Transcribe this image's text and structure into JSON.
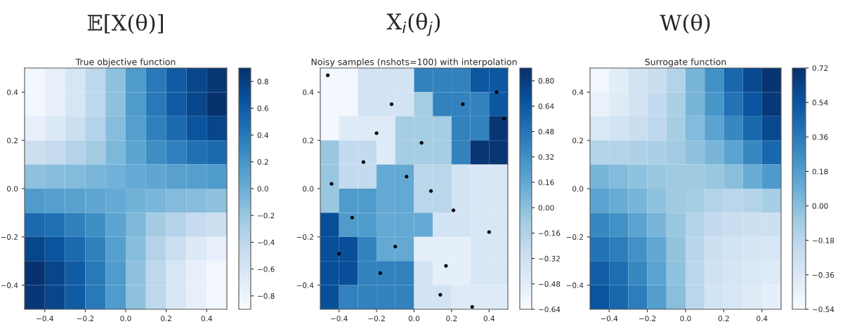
{
  "chart_data": [
    {
      "type": "heatmap",
      "title": "𝔼[X(θ)]",
      "subtitle": "True objective function",
      "xlim": [
        -0.5,
        0.5
      ],
      "ylim": [
        -0.5,
        0.5
      ],
      "xticks": [
        {
          "value": -0.4,
          "label": "−0.4"
        },
        {
          "value": -0.2,
          "label": "−0.2"
        },
        {
          "value": 0.0,
          "label": "0.0"
        },
        {
          "value": 0.2,
          "label": "0.2"
        },
        {
          "value": 0.4,
          "label": "0.4"
        }
      ],
      "yticks": [
        {
          "value": -0.4,
          "label": "−0.4"
        },
        {
          "value": -0.2,
          "label": "−0.2"
        },
        {
          "value": 0.0,
          "label": "0.0"
        },
        {
          "value": 0.2,
          "label": "0.2"
        },
        {
          "value": 0.4,
          "label": "0.4"
        }
      ],
      "clim": [
        -0.9,
        0.9
      ],
      "cticks": [
        {
          "value": -0.8,
          "label": "−0.8"
        },
        {
          "value": -0.6,
          "label": "−0.6"
        },
        {
          "value": -0.4,
          "label": "−0.4"
        },
        {
          "value": -0.2,
          "label": "−0.2"
        },
        {
          "value": 0.0,
          "label": "0.0"
        },
        0.2,
        0.4,
        0.6,
        0.8
      ],
      "cells": [
        [
          -0.85,
          -0.75,
          -0.6,
          -0.4,
          -0.15,
          0.15,
          0.4,
          0.6,
          0.75,
          0.85
        ],
        [
          -0.85,
          -0.75,
          -0.6,
          -0.4,
          -0.15,
          0.15,
          0.4,
          0.6,
          0.75,
          0.88
        ],
        [
          -0.75,
          -0.65,
          -0.5,
          -0.35,
          -0.12,
          0.12,
          0.35,
          0.5,
          0.65,
          0.75
        ],
        [
          -0.5,
          -0.45,
          -0.35,
          -0.25,
          -0.08,
          0.08,
          0.25,
          0.35,
          0.45,
          0.5
        ],
        [
          -0.15,
          -0.12,
          -0.1,
          -0.07,
          -0.03,
          0.03,
          0.07,
          0.1,
          0.12,
          0.15
        ],
        [
          0.15,
          0.12,
          0.1,
          0.07,
          0.03,
          -0.03,
          -0.07,
          -0.1,
          -0.12,
          -0.15
        ],
        [
          0.5,
          0.45,
          0.35,
          0.25,
          0.08,
          -0.08,
          -0.25,
          -0.35,
          -0.45,
          -0.5
        ],
        [
          0.75,
          0.65,
          0.5,
          0.35,
          0.12,
          -0.12,
          -0.35,
          -0.5,
          -0.65,
          -0.75
        ],
        [
          0.88,
          0.75,
          0.6,
          0.4,
          0.15,
          -0.15,
          -0.4,
          -0.6,
          -0.75,
          -0.85
        ],
        [
          0.85,
          0.75,
          0.6,
          0.4,
          0.15,
          -0.15,
          -0.4,
          -0.6,
          -0.75,
          -0.85
        ]
      ]
    },
    {
      "type": "heatmap",
      "title": "X$_{i}$(θ$_{j}$)",
      "subtitle": "Noisy samples (nshots=100) with interpolation",
      "xlim": [
        -0.5,
        0.5
      ],
      "ylim": [
        -0.5,
        0.5
      ],
      "xticks": [
        {
          "value": -0.4,
          "label": "−0.4"
        },
        {
          "value": -0.2,
          "label": "−0.2"
        },
        {
          "value": 0.0,
          "label": "0.0"
        },
        {
          "value": 0.2,
          "label": "0.2"
        },
        {
          "value": 0.4,
          "label": "0.4"
        }
      ],
      "yticks": [
        {
          "value": -0.4,
          "label": "−0.4"
        },
        {
          "value": -0.2,
          "label": "−0.2"
        },
        {
          "value": 0.0,
          "label": "0.0"
        },
        {
          "value": 0.2,
          "label": "0.2"
        },
        {
          "value": 0.4,
          "label": "0.4"
        }
      ],
      "clim": [
        -0.64,
        0.88
      ],
      "cticks": [
        {
          "value": -0.64,
          "label": "−0.64"
        },
        {
          "value": -0.48,
          "label": "−0.48"
        },
        {
          "value": -0.32,
          "label": "−0.32"
        },
        {
          "value": -0.16,
          "label": "−0.16"
        },
        {
          "value": 0.0,
          "label": "0.00"
        },
        0.16,
        0.32,
        0.48,
        0.64,
        {
          "value": 0.8,
          "label": "0.80"
        }
      ],
      "cells": [
        [
          -0.6,
          -0.6,
          -0.35,
          -0.35,
          -0.35,
          0.4,
          0.4,
          0.4,
          0.65,
          0.65
        ],
        [
          -0.6,
          -0.6,
          -0.35,
          -0.35,
          -0.35,
          -0.1,
          0.4,
          0.4,
          0.4,
          0.65
        ],
        [
          -0.6,
          -0.45,
          -0.45,
          -0.45,
          -0.1,
          -0.1,
          -0.1,
          0.4,
          0.4,
          0.85
        ],
        [
          -0.05,
          -0.25,
          -0.25,
          -0.45,
          -0.1,
          -0.1,
          -0.1,
          0.4,
          0.85,
          0.85
        ],
        [
          -0.05,
          -0.25,
          -0.25,
          0.15,
          0.15,
          -0.2,
          -0.2,
          -0.35,
          -0.4,
          -0.4
        ],
        [
          -0.05,
          0.25,
          0.25,
          0.15,
          0.15,
          -0.2,
          -0.2,
          -0.35,
          -0.4,
          -0.4
        ],
        [
          0.7,
          0.25,
          0.25,
          0.15,
          0.15,
          0.15,
          -0.35,
          -0.35,
          -0.4,
          -0.4
        ],
        [
          0.7,
          0.7,
          0.4,
          0.15,
          0.15,
          -0.5,
          -0.5,
          -0.5,
          -0.4,
          -0.4
        ],
        [
          0.7,
          0.7,
          0.4,
          0.4,
          0.4,
          -0.35,
          -0.5,
          -0.5,
          -0.4,
          -0.4
        ],
        [
          0.7,
          0.4,
          0.4,
          0.4,
          0.4,
          -0.35,
          -0.35,
          -0.45,
          -0.45,
          -0.45
        ]
      ],
      "series": [
        {
          "type": "scatter",
          "color": "#000000",
          "x": [
            -0.46,
            -0.12,
            -0.2,
            -0.27,
            -0.44,
            -0.33,
            -0.4,
            -0.18,
            -0.1,
            -0.04,
            0.04,
            0.09,
            0.21,
            0.26,
            0.44,
            0.48,
            0.4,
            0.17,
            0.14,
            0.31
          ],
          "values": [
            0.47,
            0.35,
            0.23,
            0.11,
            0.02,
            -0.12,
            -0.27,
            -0.35,
            -0.24,
            0.05,
            0.19,
            -0.01,
            -0.09,
            0.35,
            0.4,
            0.29,
            -0.18,
            -0.32,
            -0.44,
            -0.49
          ]
        }
      ]
    },
    {
      "type": "heatmap",
      "title": "W(θ)",
      "subtitle": "Surrogate function",
      "xlim": [
        -0.5,
        0.5
      ],
      "ylim": [
        -0.5,
        0.5
      ],
      "xticks": [
        {
          "value": -0.4,
          "label": "−0.4"
        },
        {
          "value": -0.2,
          "label": "−0.2"
        },
        {
          "value": 0.0,
          "label": "0.0"
        },
        {
          "value": 0.2,
          "label": "0.2"
        },
        {
          "value": 0.4,
          "label": "0.4"
        }
      ],
      "yticks": [
        {
          "value": -0.4,
          "label": "−0.4"
        },
        {
          "value": -0.2,
          "label": "−0.2"
        },
        {
          "value": 0.0,
          "label": "0.0"
        },
        {
          "value": 0.2,
          "label": "0.2"
        },
        {
          "value": 0.4,
          "label": "0.4"
        }
      ],
      "clim": [
        -0.54,
        0.72
      ],
      "cticks": [
        {
          "value": -0.54,
          "label": "−0.54"
        },
        {
          "value": -0.36,
          "label": "−0.36"
        },
        {
          "value": -0.18,
          "label": "−0.18"
        },
        {
          "value": 0.0,
          "label": "0.00"
        },
        0.18,
        0.36,
        0.54,
        0.72
      ],
      "cells": [
        [
          -0.5,
          -0.4,
          -0.3,
          -0.25,
          -0.15,
          0.05,
          0.25,
          0.45,
          0.6,
          0.7
        ],
        [
          -0.45,
          -0.38,
          -0.3,
          -0.22,
          -0.12,
          0.05,
          0.22,
          0.4,
          0.55,
          0.68
        ],
        [
          -0.35,
          -0.3,
          -0.25,
          -0.2,
          -0.1,
          0.02,
          0.15,
          0.3,
          0.45,
          0.6
        ],
        [
          -0.15,
          -0.15,
          -0.13,
          -0.12,
          -0.08,
          -0.02,
          0.05,
          0.15,
          0.3,
          0.45
        ],
        [
          0.05,
          0.02,
          -0.02,
          -0.05,
          -0.07,
          -0.07,
          -0.05,
          0.0,
          0.1,
          0.2
        ],
        [
          0.15,
          0.1,
          0.05,
          -0.02,
          -0.07,
          -0.1,
          -0.15,
          -0.18,
          -0.15,
          -0.1
        ],
        [
          0.3,
          0.25,
          0.15,
          0.05,
          -0.05,
          -0.15,
          -0.22,
          -0.25,
          -0.27,
          -0.27
        ],
        [
          0.4,
          0.35,
          0.25,
          0.12,
          -0.03,
          -0.17,
          -0.27,
          -0.3,
          -0.32,
          -0.33
        ],
        [
          0.5,
          0.42,
          0.3,
          0.15,
          -0.02,
          -0.18,
          -0.28,
          -0.32,
          -0.35,
          -0.38
        ],
        [
          0.55,
          0.45,
          0.35,
          0.18,
          0.0,
          -0.18,
          -0.3,
          -0.33,
          -0.38,
          -0.42
        ]
      ]
    }
  ]
}
